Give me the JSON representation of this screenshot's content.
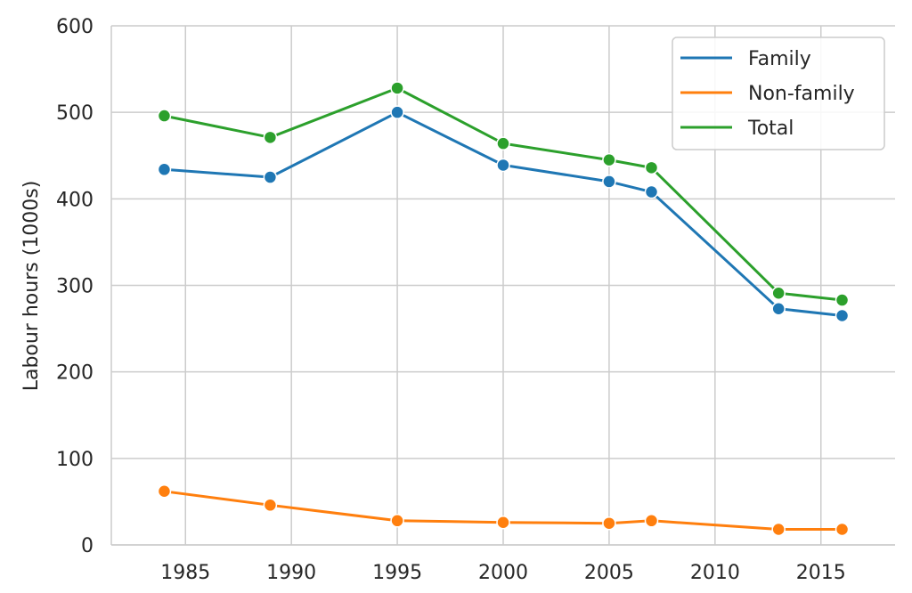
{
  "chart_data": {
    "type": "line",
    "title": "",
    "xlabel": "",
    "ylabel": "Labour hours (1000s)",
    "x": [
      1984,
      1989,
      1995,
      2000,
      2005,
      2007,
      2013,
      2016
    ],
    "xlim": [
      1981.5,
      2018.5
    ],
    "ylim": [
      0,
      600
    ],
    "xticks": [
      1985,
      1990,
      1995,
      2000,
      2005,
      2010,
      2015
    ],
    "yticks": [
      0,
      100,
      200,
      300,
      400,
      500,
      600
    ],
    "grid": true,
    "legend_position": "top-right",
    "series": [
      {
        "name": "Family",
        "color": "#1f77b4",
        "values": [
          434,
          425,
          500,
          439,
          420,
          408,
          273,
          265
        ]
      },
      {
        "name": "Non-family",
        "color": "#ff7f0e",
        "values": [
          62,
          46,
          28,
          26,
          25,
          28,
          18,
          18
        ]
      },
      {
        "name": "Total",
        "color": "#2ca02c",
        "values": [
          496,
          471,
          528,
          464,
          445,
          436,
          291,
          283
        ]
      }
    ]
  }
}
